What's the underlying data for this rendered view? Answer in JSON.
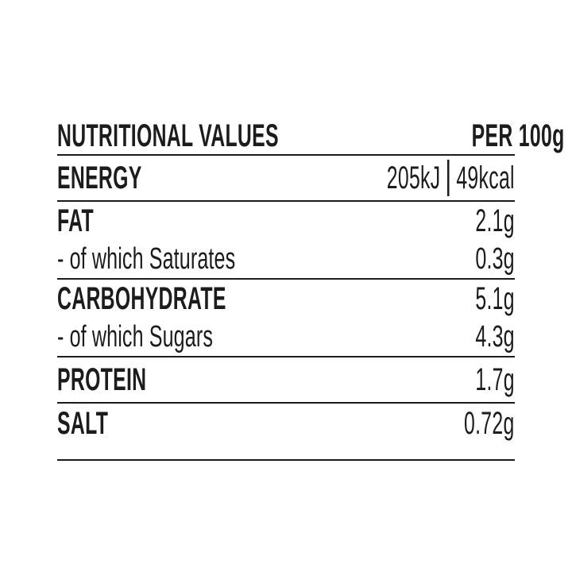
{
  "label": {
    "header": {
      "title": "NUTRITIONAL VALUES",
      "per": "PER 100g"
    },
    "energy": {
      "label": "ENERGY",
      "kj": "205kJ",
      "kcal": "49kcal"
    },
    "fat": {
      "label": "FAT",
      "value": "2.1g"
    },
    "saturates": {
      "label": "- of which Saturates",
      "value": "0.3g"
    },
    "carbohydrate": {
      "label": "CARBOHYDRATE",
      "value": "5.1g"
    },
    "sugars": {
      "label": "- of which Sugars",
      "value": "4.3g"
    },
    "protein": {
      "label": "PROTEIN",
      "value": "1.7g"
    },
    "salt": {
      "label": "SALT",
      "value": "0.72g"
    }
  },
  "colors": {
    "text": "#1c1c1c",
    "rule": "#1c1c1c",
    "background": "#ffffff"
  }
}
